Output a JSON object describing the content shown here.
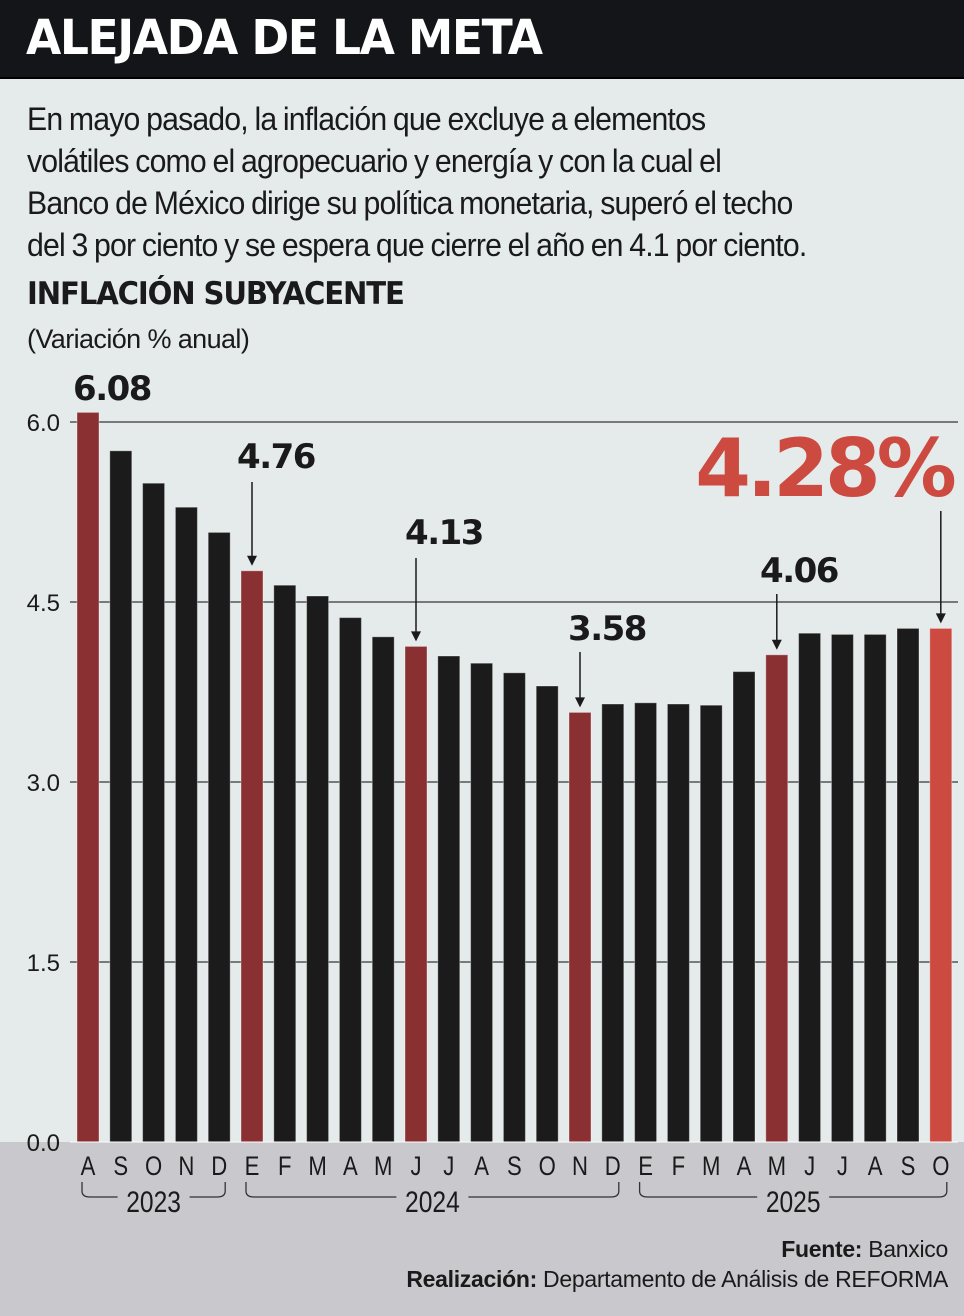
{
  "header": {
    "title": "ALEJADA DE LA META"
  },
  "intro": {
    "lines": [
      "En mayo pasado, la inflación que excluye a elementos",
      "volátiles como el agropecuario y energía y con la cual el",
      "Banco de México dirige su política monetaria, superó el techo",
      "del 3 por ciento y se espera que cierre el año en 4.1 por ciento."
    ]
  },
  "colors": {
    "background": "#e5eaea",
    "header_bg": "#141518",
    "bar_default": "#1b1b1b",
    "bar_highlight": "#8a3033",
    "bar_latest": "#cd4a40",
    "gridline": "#555555",
    "footer_band": "#c9c8cd"
  },
  "chart_data": {
    "type": "bar",
    "title": "INFLACIÓN SUBYACENTE",
    "subtitle": "(Variación % anual)",
    "xlabel": "",
    "ylabel": "",
    "ylim": [
      0,
      6.0
    ],
    "yticks": [
      0.0,
      1.5,
      3.0,
      4.5,
      6.0
    ],
    "ytick_labels": [
      "0.0",
      "1.5",
      "3.0",
      "4.5",
      "6.0"
    ],
    "grid": true,
    "categories": [
      "A",
      "S",
      "O",
      "N",
      "D",
      "E",
      "F",
      "M",
      "A",
      "M",
      "J",
      "J",
      "A",
      "S",
      "O",
      "N",
      "D",
      "E",
      "F",
      "M",
      "A",
      "M",
      "J",
      "J",
      "A",
      "S",
      "O"
    ],
    "values": [
      6.08,
      5.76,
      5.49,
      5.29,
      5.08,
      4.76,
      4.64,
      4.55,
      4.37,
      4.21,
      4.13,
      4.05,
      3.99,
      3.91,
      3.8,
      3.58,
      3.65,
      3.66,
      3.65,
      3.64,
      3.92,
      4.06,
      4.24,
      4.23,
      4.23,
      4.28,
      4.28
    ],
    "bar_styles": [
      "highlight",
      "default",
      "default",
      "default",
      "default",
      "highlight",
      "default",
      "default",
      "default",
      "default",
      "highlight",
      "default",
      "default",
      "default",
      "default",
      "highlight",
      "default",
      "default",
      "default",
      "default",
      "default",
      "highlight",
      "default",
      "default",
      "default",
      "default",
      "latest"
    ],
    "year_groups": [
      {
        "label": "2023",
        "start": 0,
        "end": 4
      },
      {
        "label": "2024",
        "start": 5,
        "end": 16
      },
      {
        "label": "2025",
        "start": 17,
        "end": 26
      }
    ],
    "annotations": [
      {
        "index": 0,
        "label": "6.08",
        "arrow": false,
        "style": "normal"
      },
      {
        "index": 5,
        "label": "4.76",
        "arrow": true,
        "style": "normal"
      },
      {
        "index": 10,
        "label": "4.13",
        "arrow": true,
        "style": "normal"
      },
      {
        "index": 15,
        "label": "3.58",
        "arrow": true,
        "style": "normal"
      },
      {
        "index": 21,
        "label": "4.06",
        "arrow": true,
        "style": "normal"
      },
      {
        "index": 26,
        "label": "4.28%",
        "arrow": true,
        "style": "big"
      }
    ]
  },
  "footer": {
    "source_label": "Fuente:",
    "source_value": "Banxico",
    "credit_label": "Realización:",
    "credit_value": "Departamento de Análisis de REFORMA"
  }
}
